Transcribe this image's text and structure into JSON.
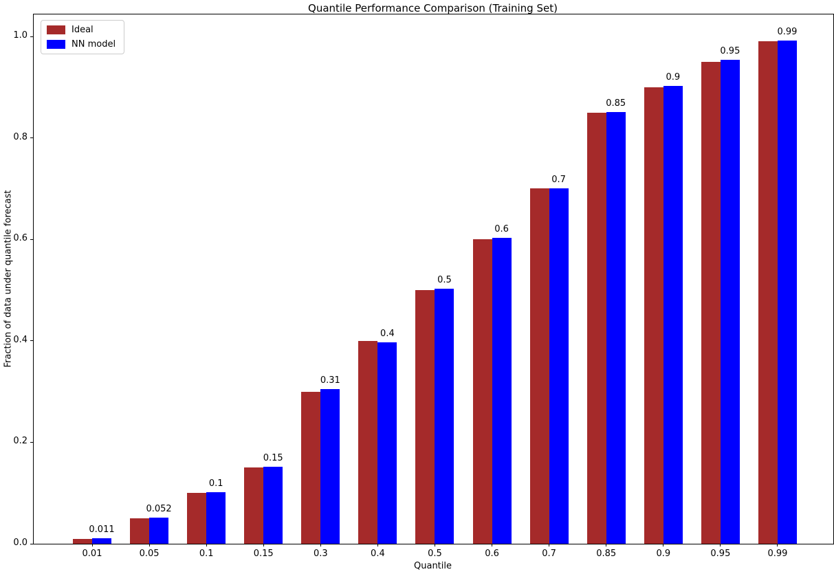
{
  "chart_data": {
    "type": "bar",
    "title": "Quantile Performance Comparison (Training Set)",
    "xlabel": "Quantile",
    "ylabel": "Fraction of data under quantile forecast",
    "categories": [
      "0.01",
      "0.05",
      "0.1",
      "0.15",
      "0.3",
      "0.4",
      "0.5",
      "0.6",
      "0.7",
      "0.85",
      "0.9",
      "0.95",
      "0.99"
    ],
    "series": [
      {
        "name": "Ideal",
        "color": "#a52a2a",
        "values": [
          0.01,
          0.05,
          0.1,
          0.15,
          0.3,
          0.4,
          0.5,
          0.6,
          0.7,
          0.85,
          0.9,
          0.95,
          0.99
        ]
      },
      {
        "name": "NN model",
        "color": "#0000ff",
        "values": [
          0.011,
          0.052,
          0.102,
          0.152,
          0.305,
          0.397,
          0.503,
          0.603,
          0.7,
          0.851,
          0.902,
          0.954,
          0.992
        ],
        "labels": [
          "0.011",
          "0.052",
          "0.1",
          "0.15",
          "0.31",
          "0.4",
          "0.5",
          "0.6",
          "0.7",
          "0.85",
          "0.9",
          "0.95",
          "0.99"
        ]
      }
    ],
    "yticks": [
      "0.0",
      "0.2",
      "0.4",
      "0.6",
      "0.8",
      "1.0"
    ],
    "ylim": [
      0.0,
      1.043
    ],
    "grid": false,
    "legend_position": "upper left",
    "background_color": "#ffffff",
    "spine_color": "#000000"
  }
}
